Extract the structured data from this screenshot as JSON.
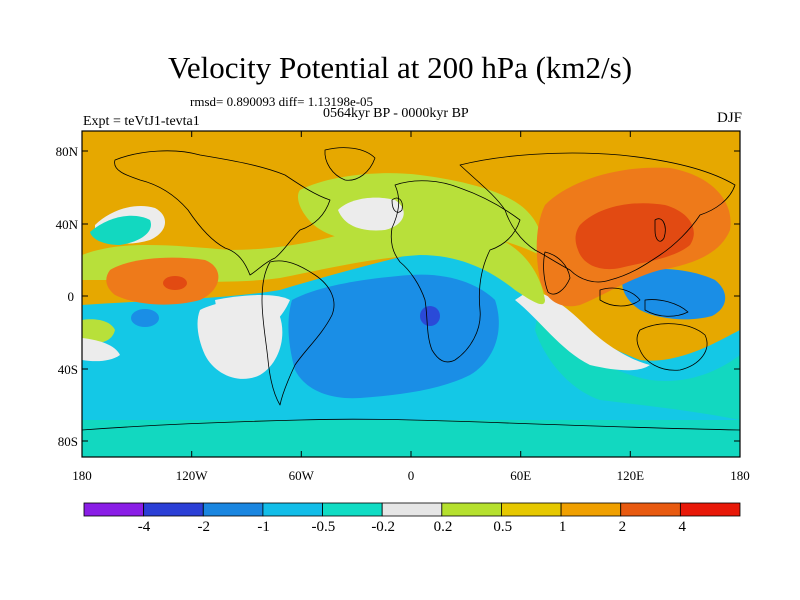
{
  "title": "Velocity Potential at 200 hPa (km2/s)",
  "stats": "rmsd= 0.890093 diff= 1.13198e-05",
  "period": "0564kyr BP - 0000kyr BP",
  "experiment": "Expt = teVtJ1-tevta1",
  "season": "DJF",
  "lat_ticks": [
    "80N",
    "40N",
    "0",
    "40S",
    "80S"
  ],
  "lon_ticks": [
    "180",
    "120W",
    "60W",
    "0",
    "60E",
    "120E",
    "180"
  ],
  "colorbar": {
    "labels": [
      "-4",
      "-2",
      "-1",
      "-0.5",
      "-0.2",
      "0.2",
      "0.5",
      "1",
      "2",
      "4"
    ],
    "colors": [
      "#8a1ee6",
      "#2b3fd6",
      "#1a86e0",
      "#12bde8",
      "#10dcc4",
      "#e6e6e6",
      "#b5e02e",
      "#e6c800",
      "#f0a000",
      "#e85a10",
      "#e81808"
    ]
  },
  "palette": {
    "ocean_bg": "#e6a800",
    "orange_hi": "#ee7a1a",
    "red_hi": "#e24a12",
    "green": "#b8e03a",
    "white": "#ececec",
    "cyan": "#14c8e6",
    "teal": "#12d8c0",
    "blue": "#1a8ee6",
    "deep_blue": "#2a4ad8"
  }
}
